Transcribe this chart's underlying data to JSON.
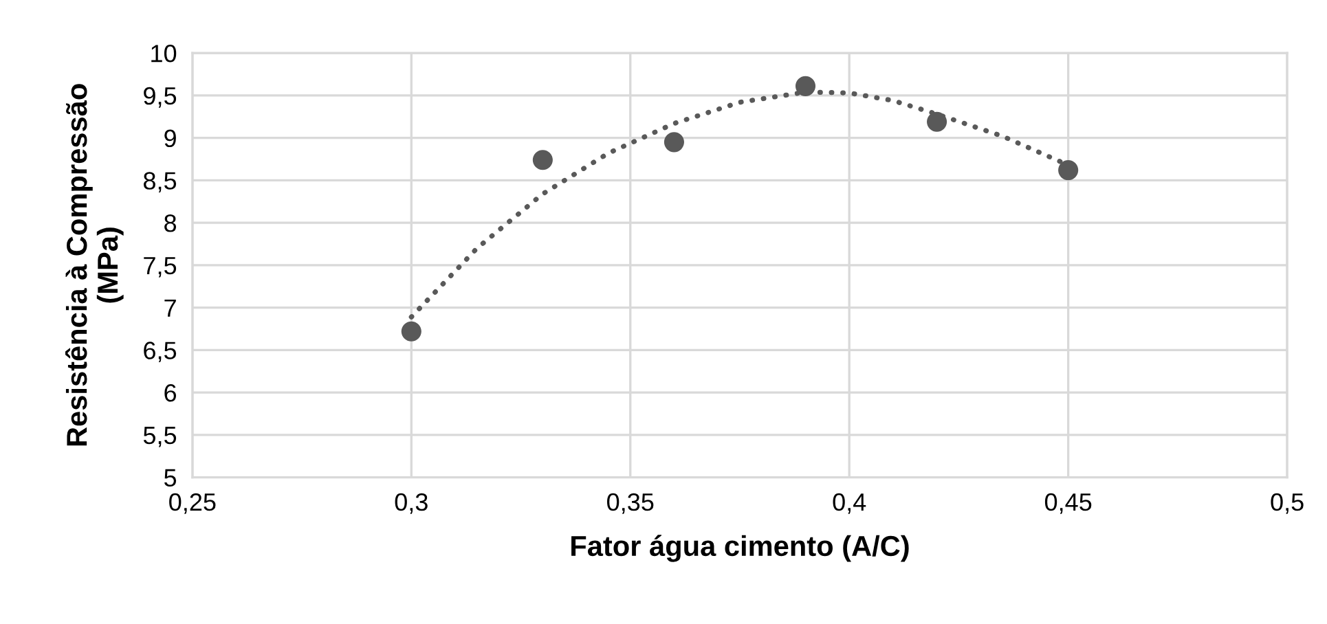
{
  "chart_data": {
    "type": "scatter",
    "xlabel": "Fator água cimento (A/C)",
    "ylabel": "Resistência à Compressão\n(MPa)",
    "series": [
      {
        "color": "#595959",
        "marker": "circle",
        "x": [
          0.3,
          0.33,
          0.36,
          0.39,
          0.42,
          0.45
        ],
        "values": [
          6.72,
          8.74,
          8.95,
          9.61,
          9.19,
          8.62
        ]
      },
      {
        "type": "line",
        "color": "#595959",
        "line_style": "dotted",
        "x": [
          0.3,
          0.315,
          0.33,
          0.345,
          0.36,
          0.375,
          0.39,
          0.4,
          0.41,
          0.42,
          0.435,
          0.45
        ],
        "values": [
          6.89,
          7.7,
          8.34,
          8.82,
          9.17,
          9.42,
          9.54,
          9.53,
          9.44,
          9.28,
          9.02,
          8.68
        ]
      }
    ],
    "xlim": [
      0.25,
      0.5
    ],
    "xticks": [
      {
        "value": 0.25,
        "label": "0,25"
      },
      {
        "value": 0.3,
        "label": "0,3"
      },
      {
        "value": 0.35,
        "label": "0,35"
      },
      {
        "value": 0.4,
        "label": "0,4"
      },
      {
        "value": 0.45,
        "label": "0,45"
      },
      {
        "value": 0.5,
        "label": "0,5"
      }
    ],
    "ylim": [
      5,
      10
    ],
    "yticks": [
      5,
      {
        "value": 5.5,
        "label": "5,5"
      },
      6,
      {
        "value": 6.5,
        "label": "6,5"
      },
      7,
      {
        "value": 7.5,
        "label": "7,5"
      },
      8,
      {
        "value": 8.5,
        "label": "8,5"
      },
      9,
      {
        "value": 9.5,
        "label": "9,5"
      },
      10
    ],
    "grid": true
  }
}
